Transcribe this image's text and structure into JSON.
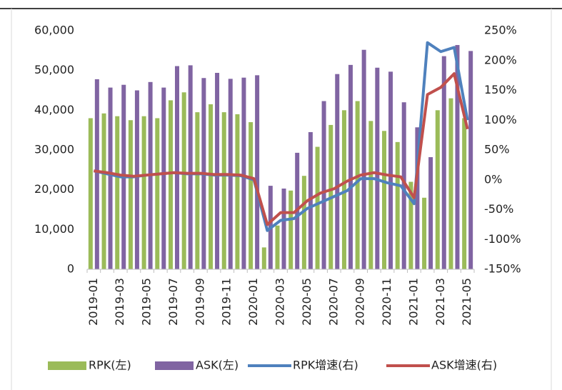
{
  "chart_data": {
    "type": "bar-line",
    "categories": [
      "2019-01",
      null,
      "2019-03",
      null,
      "2019-05",
      null,
      "2019-07",
      null,
      "2019-09",
      null,
      "2019-11",
      null,
      "2020-01",
      null,
      "2020-03",
      null,
      "2020-05",
      null,
      "2020-07",
      null,
      "2020-09",
      null,
      "2020-11",
      null,
      "2021-01",
      null,
      "2021-03",
      null,
      "2021-05"
    ],
    "series": [
      {
        "name": "RPK(左)",
        "type": "bar",
        "color": "#9bbb59",
        "values": [
          38000,
          39200,
          38500,
          37500,
          38500,
          38000,
          42500,
          44500,
          39500,
          41500,
          39500,
          39000,
          37000,
          5500,
          11000,
          19800,
          23500,
          30800,
          36300,
          40000,
          42300,
          37300,
          34800,
          32000,
          22000,
          18000,
          40000,
          43000,
          38000
        ]
      },
      {
        "name": "ASK(左)",
        "type": "bar",
        "color": "#8064a2",
        "values": [
          47800,
          45700,
          46400,
          45000,
          47100,
          45700,
          51100,
          51300,
          48100,
          49400,
          47900,
          48200,
          48800,
          21000,
          20300,
          29300,
          34500,
          42300,
          49100,
          51400,
          55200,
          50700,
          49700,
          42000,
          35700,
          28200,
          53600,
          56400,
          54900
        ]
      },
      {
        "name": "RPK增速(右)",
        "type": "line",
        "axis": "y2",
        "color": "#4f81bd",
        "values": [
          15,
          10,
          5,
          5,
          8,
          10,
          12,
          10,
          10,
          8,
          8,
          7,
          0,
          -85,
          -68,
          -65,
          -48,
          -38,
          -28,
          -18,
          2,
          2,
          -5,
          -10,
          -40,
          230,
          215,
          222,
          100
        ]
      },
      {
        "name": "ASK增速(右)",
        "type": "line",
        "axis": "y2",
        "color": "#c0504d",
        "values": [
          15,
          12,
          8,
          6,
          8,
          10,
          12,
          11,
          11,
          9,
          9,
          8,
          2,
          -75,
          -55,
          -55,
          -35,
          -22,
          -15,
          -2,
          8,
          12,
          8,
          5,
          -30,
          143,
          155,
          178,
          85
        ]
      }
    ],
    "ylim": [
      0,
      60000
    ],
    "yticks": [
      0,
      {
        "value": 10000,
        "label": "10,000"
      },
      {
        "value": 20000,
        "label": "20,000"
      },
      {
        "value": 30000,
        "label": "30,000"
      },
      {
        "value": 40000,
        "label": "40,000"
      },
      {
        "value": 50000,
        "label": "50,000"
      },
      {
        "value": 60000,
        "label": "60,000"
      }
    ],
    "y2lim": [
      -150,
      250
    ],
    "y2ticks": [
      {
        "value": -150,
        "label": "-150%"
      },
      {
        "value": -100,
        "label": "-100%"
      },
      {
        "value": -50,
        "label": "-50%"
      },
      {
        "value": 0,
        "label": "0%"
      },
      {
        "value": 50,
        "label": "50%"
      },
      {
        "value": 100,
        "label": "100%"
      },
      {
        "value": 150,
        "label": "150%"
      },
      {
        "value": 200,
        "label": "200%"
      },
      {
        "value": 250,
        "label": "250%"
      }
    ],
    "legend": "bottom"
  }
}
